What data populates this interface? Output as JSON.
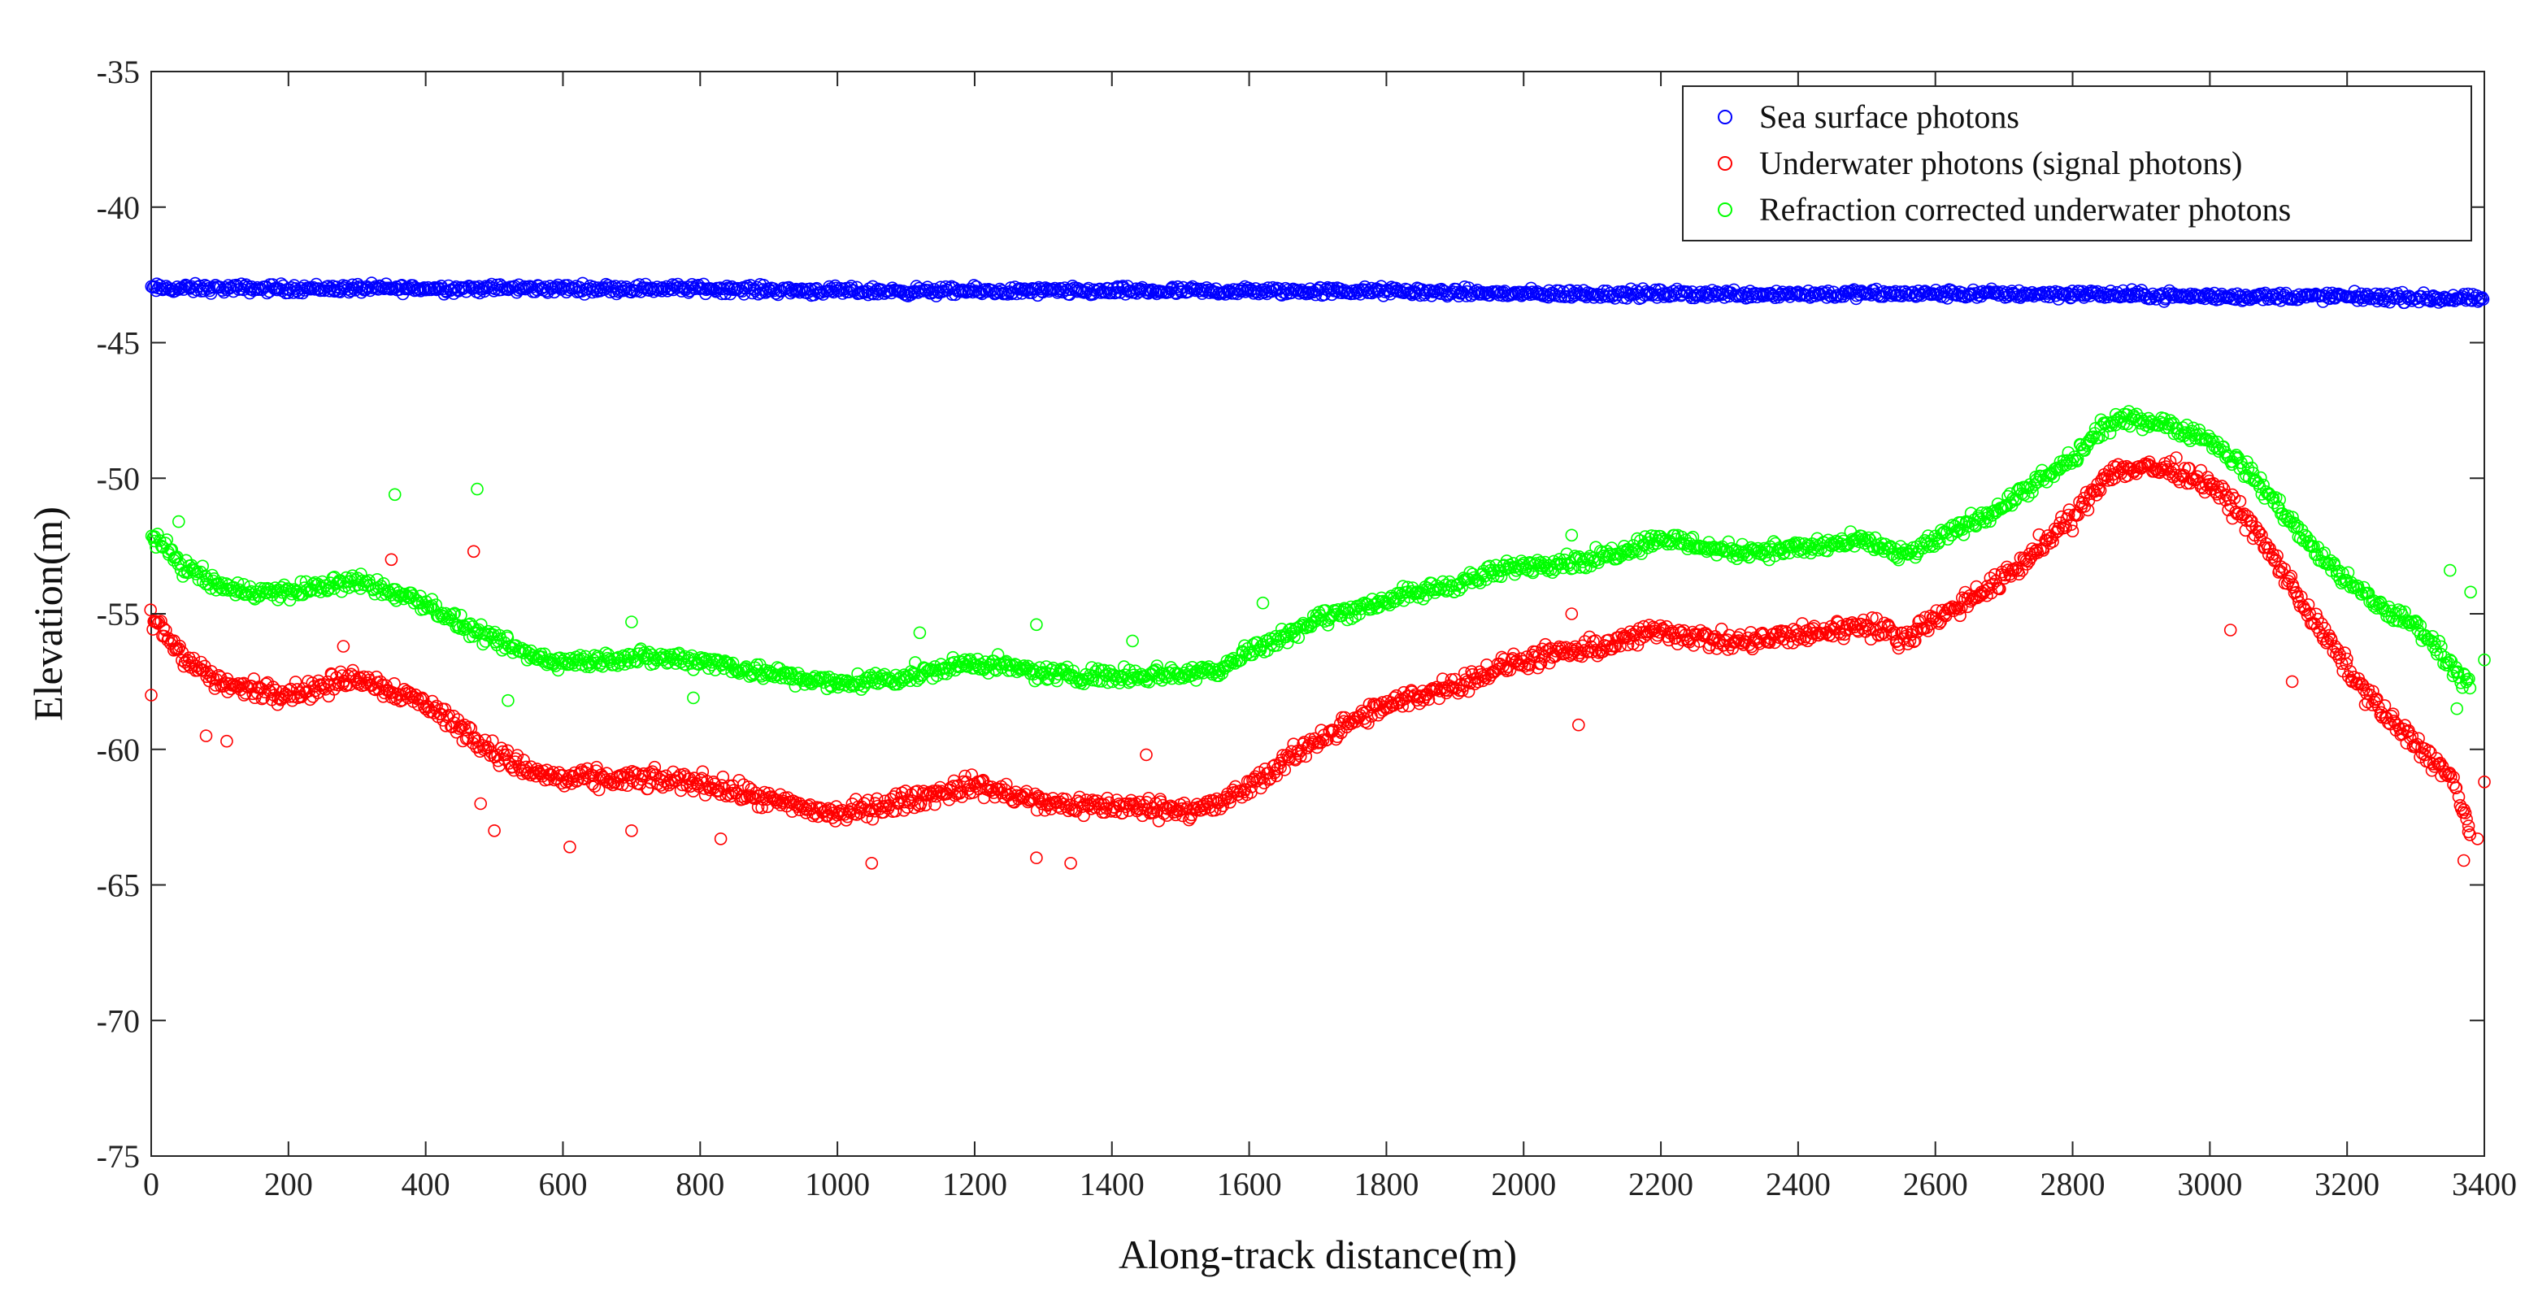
{
  "chart_data": {
    "type": "scatter",
    "title": "",
    "xlabel": "Along-track distance(m)",
    "ylabel": "Elevation(m)",
    "xlim": [
      0,
      3400
    ],
    "ylim": [
      -75,
      -35
    ],
    "grid": false,
    "legend_position": "top-right",
    "xticks": [
      "0",
      "200",
      "400",
      "600",
      "800",
      "1000",
      "1200",
      "1400",
      "1600",
      "1800",
      "2000",
      "2200",
      "2400",
      "2600",
      "2800",
      "3000",
      "3200",
      "3400"
    ],
    "yticks": [
      "-35",
      "-40",
      "-45",
      "-50",
      "-55",
      "-60",
      "-65",
      "-70",
      "-75"
    ],
    "series": [
      {
        "name": "Sea surface photons",
        "color": "#0000ff",
        "marker": "open-circle",
        "profile_x": [
          0,
          200,
          400,
          600,
          800,
          1000,
          1200,
          1400,
          1600,
          1800,
          2000,
          2200,
          2400,
          2600,
          2800,
          3000,
          3200,
          3400
        ],
        "profile_y": [
          -43.0,
          -43.0,
          -43.0,
          -43.0,
          -43.0,
          -43.1,
          -43.1,
          -43.1,
          -43.1,
          -43.1,
          -43.2,
          -43.2,
          -43.2,
          -43.2,
          -43.2,
          -43.3,
          -43.3,
          -43.4
        ],
        "spread": 0.25,
        "outliers": []
      },
      {
        "name": "Underwater photons (signal photons)",
        "color": "#ff0000",
        "marker": "open-circle",
        "profile_x": [
          0,
          50,
          100,
          150,
          200,
          250,
          300,
          350,
          400,
          450,
          500,
          550,
          600,
          700,
          800,
          900,
          1000,
          1100,
          1200,
          1300,
          1400,
          1500,
          1550,
          1600,
          1700,
          1800,
          1900,
          2000,
          2100,
          2200,
          2300,
          2400,
          2500,
          2550,
          2600,
          2700,
          2800,
          2850,
          2900,
          2950,
          3000,
          3050,
          3100,
          3150,
          3200,
          3250,
          3300,
          3350,
          3380
        ],
        "profile_y": [
          -55.2,
          -56.6,
          -57.6,
          -57.8,
          -57.9,
          -57.7,
          -57.3,
          -57.8,
          -58.3,
          -59.2,
          -60.1,
          -60.8,
          -61.1,
          -61.1,
          -61.2,
          -61.9,
          -62.4,
          -61.9,
          -61.3,
          -62.0,
          -62.1,
          -62.2,
          -62.1,
          -61.4,
          -59.6,
          -58.4,
          -57.6,
          -56.7,
          -56.3,
          -55.6,
          -56.1,
          -55.8,
          -55.4,
          -55.9,
          -55.2,
          -53.7,
          -51.5,
          -49.8,
          -49.6,
          -49.7,
          -50.2,
          -51.4,
          -53.2,
          -55.2,
          -57.0,
          -58.6,
          -59.8,
          -61.0,
          -63.0
        ],
        "spread": 0.55,
        "outliers": [
          [
            0,
            -58.0
          ],
          [
            80,
            -59.5
          ],
          [
            110,
            -59.7
          ],
          [
            280,
            -56.2
          ],
          [
            350,
            -53.0
          ],
          [
            470,
            -52.7
          ],
          [
            480,
            -62.0
          ],
          [
            500,
            -63.0
          ],
          [
            610,
            -63.6
          ],
          [
            700,
            -63.0
          ],
          [
            830,
            -63.3
          ],
          [
            1050,
            -64.2
          ],
          [
            1290,
            -64.0
          ],
          [
            1340,
            -64.2
          ],
          [
            1450,
            -60.2
          ],
          [
            2070,
            -55.0
          ],
          [
            2080,
            -59.1
          ],
          [
            3030,
            -55.6
          ],
          [
            3120,
            -57.5
          ],
          [
            3370,
            -64.1
          ],
          [
            3390,
            -63.3
          ],
          [
            3400,
            -61.2
          ]
        ]
      },
      {
        "name": "Refraction corrected underwater photons",
        "color": "#00ff00",
        "marker": "open-circle",
        "profile_x": [
          0,
          50,
          100,
          150,
          200,
          250,
          300,
          350,
          400,
          450,
          500,
          550,
          600,
          700,
          800,
          900,
          1000,
          1100,
          1200,
          1300,
          1400,
          1500,
          1550,
          1600,
          1700,
          1800,
          1900,
          2000,
          2100,
          2200,
          2300,
          2400,
          2500,
          2550,
          2600,
          2700,
          2800,
          2850,
          2900,
          2950,
          3000,
          3050,
          3100,
          3150,
          3200,
          3250,
          3300,
          3350,
          3380
        ],
        "profile_y": [
          -52.1,
          -53.3,
          -54.0,
          -54.2,
          -54.2,
          -54.0,
          -53.8,
          -54.2,
          -54.6,
          -55.4,
          -56.0,
          -56.5,
          -56.8,
          -56.6,
          -56.7,
          -57.2,
          -57.6,
          -57.3,
          -56.8,
          -57.2,
          -57.3,
          -57.2,
          -57.1,
          -56.4,
          -55.2,
          -54.5,
          -53.9,
          -53.2,
          -53.0,
          -52.2,
          -52.7,
          -52.6,
          -52.3,
          -52.9,
          -52.3,
          -51.0,
          -49.3,
          -48.0,
          -47.8,
          -48.1,
          -48.6,
          -49.6,
          -51.0,
          -52.6,
          -53.8,
          -54.8,
          -55.4,
          -56.8,
          -57.8
        ],
        "spread": 0.45,
        "outliers": [
          [
            40,
            -51.6
          ],
          [
            355,
            -50.6
          ],
          [
            475,
            -50.4
          ],
          [
            520,
            -58.2
          ],
          [
            700,
            -55.3
          ],
          [
            790,
            -58.1
          ],
          [
            1120,
            -55.7
          ],
          [
            1290,
            -55.4
          ],
          [
            1430,
            -56.0
          ],
          [
            1620,
            -54.6
          ],
          [
            2070,
            -52.1
          ],
          [
            3350,
            -53.4
          ],
          [
            3380,
            -54.2
          ],
          [
            3400,
            -56.7
          ],
          [
            3360,
            -58.5
          ]
        ]
      }
    ]
  }
}
